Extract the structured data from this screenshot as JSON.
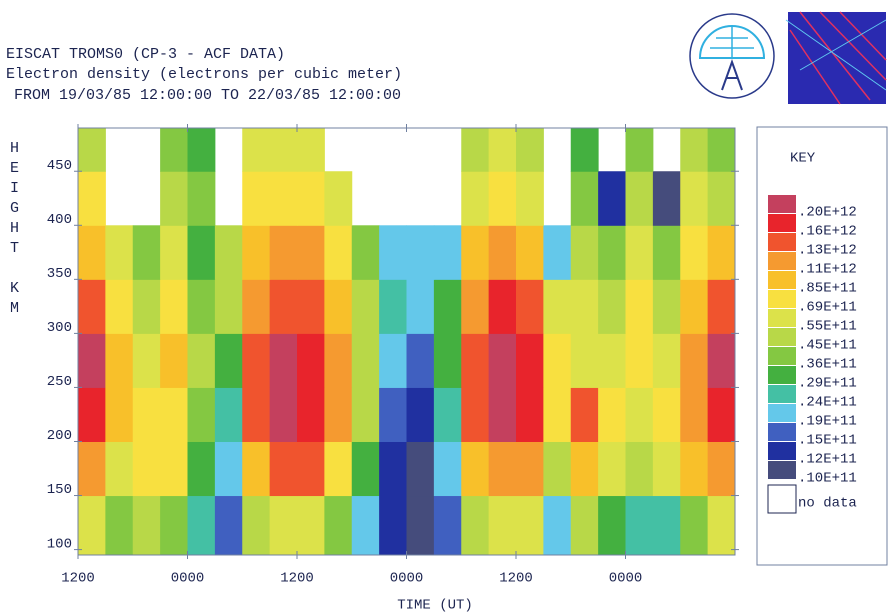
{
  "chart_data": {
    "type": "heatmap",
    "title": "EISCAT TROMS0 (CP-3 - ACF DATA)",
    "subtitle": "Electron density (electrons per cubic meter)",
    "period": "FROM 19/03/85 12:00:00 TO 22/03/85 12:00:00",
    "x_label": "TIME (UT)",
    "y_label": "HEIGHT KM",
    "legend_title": "KEY",
    "no_data_label": "no data",
    "xlim": [
      0,
      72
    ],
    "xticks": [
      {
        "value": 0,
        "label": "1200"
      },
      {
        "value": 12,
        "label": "0000"
      },
      {
        "value": 24,
        "label": "1200"
      },
      {
        "value": 36,
        "label": "0000"
      },
      {
        "value": 48,
        "label": "1200"
      },
      {
        "value": 60,
        "label": "0000"
      }
    ],
    "ylim": [
      95,
      490
    ],
    "yticks": [
      100,
      150,
      200,
      250,
      300,
      350,
      400,
      450
    ],
    "xbins": [
      0,
      3,
      6,
      9,
      12,
      15,
      18,
      21,
      24,
      27,
      30,
      33,
      36,
      39,
      42,
      45,
      48,
      51,
      54,
      57,
      60,
      63,
      66,
      69,
      72
    ],
    "ybins": [
      95,
      150,
      200,
      250,
      300,
      350,
      400,
      450,
      490
    ],
    "levels": [
      {
        "value": 200000000000.0,
        "label": ".20E+12",
        "color": "#c4405e"
      },
      {
        "value": 160000000000.0,
        "label": ".16E+12",
        "color": "#e8242c"
      },
      {
        "value": 130000000000.0,
        "label": ".13E+12",
        "color": "#f0542e"
      },
      {
        "value": 110000000000.0,
        "label": ".11E+12",
        "color": "#f59a30"
      },
      {
        "value": 85000000000.0,
        "label": ".85E+11",
        "color": "#f8c02a"
      },
      {
        "value": 69000000000.0,
        "label": ".69E+11",
        "color": "#f8e040"
      },
      {
        "value": 55000000000.0,
        "label": ".55E+11",
        "color": "#dce24a"
      },
      {
        "value": 45000000000.0,
        "label": ".45E+11",
        "color": "#b8d848"
      },
      {
        "value": 36000000000.0,
        "label": ".36E+11",
        "color": "#84c842"
      },
      {
        "value": 29000000000.0,
        "label": ".29E+11",
        "color": "#44b040"
      },
      {
        "value": 24000000000.0,
        "label": ".24E+11",
        "color": "#44c0a4"
      },
      {
        "value": 19000000000.0,
        "label": ".19E+11",
        "color": "#64c8ea"
      },
      {
        "value": 15000000000.0,
        "label": ".15E+11",
        "color": "#4060c0"
      },
      {
        "value": 12000000000.0,
        "label": ".12E+11",
        "color": "#2030a0"
      },
      {
        "value": 10000000000.0,
        "label": ".10E+11",
        "color": "#454c7c"
      }
    ],
    "z": [
      [
        55000000000.0,
        36000000000.0,
        45000000000.0,
        36000000000.0,
        24000000000.0,
        15000000000.0,
        45000000000.0,
        55000000000.0,
        55000000000.0,
        36000000000.0,
        19000000000.0,
        12000000000.0,
        10000000000.0,
        15000000000.0,
        45000000000.0,
        55000000000.0,
        55000000000.0,
        19000000000.0,
        45000000000.0,
        29000000000.0,
        24000000000.0,
        24000000000.0,
        36000000000.0,
        55000000000.0
      ],
      [
        110000000000.0,
        55000000000.0,
        69000000000.0,
        69000000000.0,
        29000000000.0,
        19000000000.0,
        85000000000.0,
        130000000000.0,
        130000000000.0,
        69000000000.0,
        29000000000.0,
        12000000000.0,
        10000000000.0,
        19000000000.0,
        85000000000.0,
        110000000000.0,
        110000000000.0,
        45000000000.0,
        85000000000.0,
        55000000000.0,
        45000000000.0,
        55000000000.0,
        85000000000.0,
        110000000000.0
      ],
      [
        160000000000.0,
        85000000000.0,
        69000000000.0,
        69000000000.0,
        36000000000.0,
        24000000000.0,
        130000000000.0,
        200000000000.0,
        160000000000.0,
        110000000000.0,
        45000000000.0,
        15000000000.0,
        12000000000.0,
        24000000000.0,
        130000000000.0,
        200000000000.0,
        160000000000.0,
        69000000000.0,
        130000000000.0,
        69000000000.0,
        55000000000.0,
        69000000000.0,
        110000000000.0,
        160000000000.0
      ],
      [
        200000000000.0,
        85000000000.0,
        55000000000.0,
        85000000000.0,
        45000000000.0,
        29000000000.0,
        130000000000.0,
        200000000000.0,
        160000000000.0,
        110000000000.0,
        45000000000.0,
        19000000000.0,
        15000000000.0,
        29000000000.0,
        130000000000.0,
        200000000000.0,
        160000000000.0,
        69000000000.0,
        55000000000.0,
        55000000000.0,
        69000000000.0,
        55000000000.0,
        110000000000.0,
        200000000000.0
      ],
      [
        130000000000.0,
        69000000000.0,
        45000000000.0,
        69000000000.0,
        36000000000.0,
        45000000000.0,
        110000000000.0,
        130000000000.0,
        130000000000.0,
        85000000000.0,
        45000000000.0,
        24000000000.0,
        19000000000.0,
        29000000000.0,
        110000000000.0,
        160000000000.0,
        130000000000.0,
        55000000000.0,
        55000000000.0,
        45000000000.0,
        69000000000.0,
        45000000000.0,
        85000000000.0,
        130000000000.0
      ],
      [
        85000000000.0,
        55000000000.0,
        36000000000.0,
        55000000000.0,
        29000000000.0,
        45000000000.0,
        85000000000.0,
        110000000000.0,
        110000000000.0,
        69000000000.0,
        36000000000.0,
        19000000000.0,
        19000000000.0,
        19000000000.0,
        85000000000.0,
        110000000000.0,
        85000000000.0,
        19000000000.0,
        45000000000.0,
        36000000000.0,
        55000000000.0,
        36000000000.0,
        69000000000.0,
        85000000000.0
      ],
      [
        69000000000.0,
        null,
        null,
        45000000000.0,
        36000000000.0,
        null,
        69000000000.0,
        69000000000.0,
        69000000000.0,
        55000000000.0,
        null,
        null,
        null,
        null,
        55000000000.0,
        69000000000.0,
        55000000000.0,
        null,
        36000000000.0,
        12000000000.0,
        45000000000.0,
        10000000000.0,
        55000000000.0,
        45000000000.0
      ],
      [
        45000000000.0,
        null,
        null,
        36000000000.0,
        29000000000.0,
        null,
        55000000000.0,
        55000000000.0,
        55000000000.0,
        null,
        null,
        null,
        null,
        null,
        45000000000.0,
        55000000000.0,
        45000000000.0,
        null,
        29000000000.0,
        null,
        36000000000.0,
        null,
        45000000000.0,
        36000000000.0
      ]
    ]
  }
}
